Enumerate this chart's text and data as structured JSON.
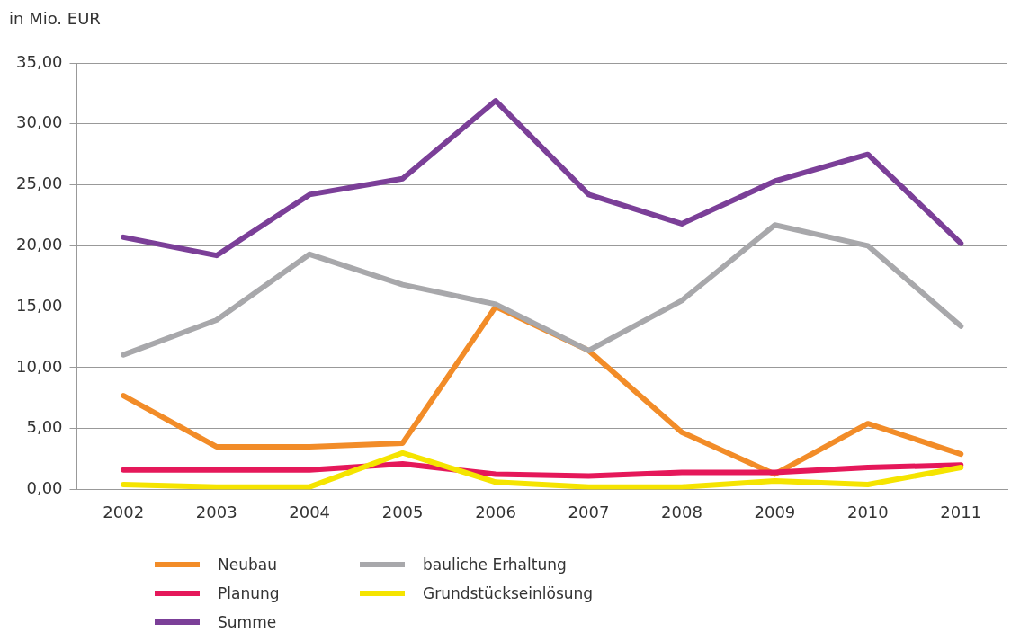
{
  "chart_data": {
    "type": "line",
    "ylabel": "in Mio. EUR",
    "categories": [
      "2002",
      "2003",
      "2004",
      "2005",
      "2006",
      "2007",
      "2008",
      "2009",
      "2010",
      "2011"
    ],
    "series": [
      {
        "name": "Neubau",
        "color": "#f28c28",
        "values": [
          7.7,
          3.5,
          3.5,
          3.8,
          15.0,
          11.4,
          4.7,
          1.25,
          5.4,
          2.9
        ]
      },
      {
        "name": "Planung",
        "color": "#e5185a",
        "values": [
          1.6,
          1.6,
          1.6,
          2.1,
          1.25,
          1.1,
          1.4,
          1.4,
          1.8,
          2.0
        ]
      },
      {
        "name": "Summe",
        "color": "#7b3f98",
        "values": [
          20.7,
          19.2,
          24.2,
          25.5,
          31.9,
          24.2,
          21.8,
          25.3,
          27.5,
          20.2
        ]
      },
      {
        "name": "bauliche Erhaltung",
        "color": "#a8a8ab",
        "values": [
          11.05,
          13.9,
          19.3,
          16.8,
          15.2,
          11.4,
          15.5,
          21.7,
          20.0,
          13.4
        ]
      },
      {
        "name": "Grundstückseinlösung",
        "color": "#f5e400",
        "values": [
          0.4,
          0.2,
          0.2,
          3.0,
          0.6,
          0.2,
          0.2,
          0.7,
          0.4,
          1.8
        ]
      }
    ],
    "ylim": [
      0,
      35
    ],
    "yticks": [
      {
        "value": 0,
        "label": "0,00"
      },
      {
        "value": 5,
        "label": "5,00"
      },
      {
        "value": 10,
        "label": "10,00"
      },
      {
        "value": 15,
        "label": "15,00"
      },
      {
        "value": 20,
        "label": "20,00"
      },
      {
        "value": 25,
        "label": "25,00"
      },
      {
        "value": 30,
        "label": "30,00"
      },
      {
        "value": 35,
        "label": "35,00"
      }
    ],
    "grid": "y",
    "legend": "bottom",
    "marker": "none",
    "line_style": "solid"
  }
}
